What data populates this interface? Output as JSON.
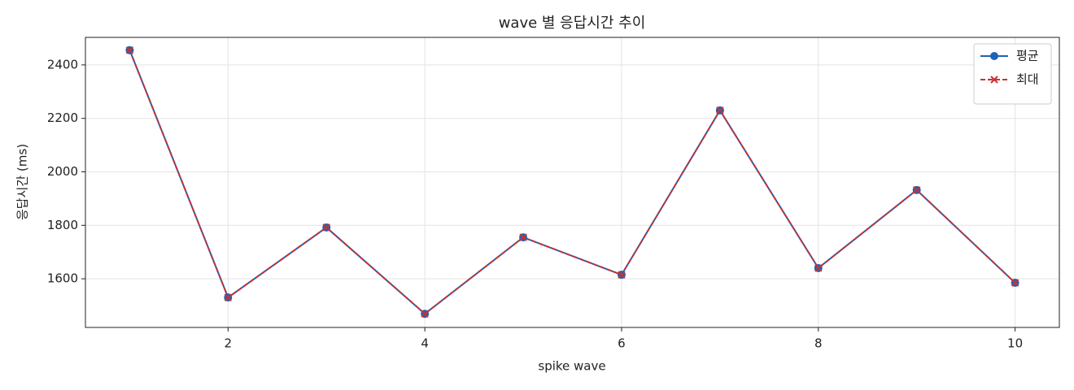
{
  "chart_data": {
    "type": "line",
    "title": "wave 별 응답시간 추이",
    "x_label": "spike wave",
    "y_label": "응답시간 (ms)",
    "x": [
      1,
      2,
      3,
      4,
      5,
      6,
      7,
      8,
      9,
      10
    ],
    "series": [
      {
        "name": "평균",
        "color": "#1f63b5",
        "line_style": "solid",
        "marker": "circle",
        "values": [
          2455,
          1530,
          1792,
          1469,
          1755,
          1615,
          2230,
          1640,
          1932,
          1585
        ]
      },
      {
        "name": "최대",
        "color": "#c83232",
        "line_style": "dashed",
        "marker": "x",
        "values": [
          2455,
          1530,
          1792,
          1469,
          1755,
          1615,
          2230,
          1640,
          1932,
          1585
        ]
      }
    ],
    "xlim": [
      0.55,
      10.45
    ],
    "xticks": [
      2,
      4,
      6,
      8,
      10
    ],
    "ylim": [
      1418,
      2503
    ],
    "yticks": [
      1600,
      1800,
      2000,
      2200,
      2400
    ],
    "grid": true,
    "legend": "upper right"
  }
}
